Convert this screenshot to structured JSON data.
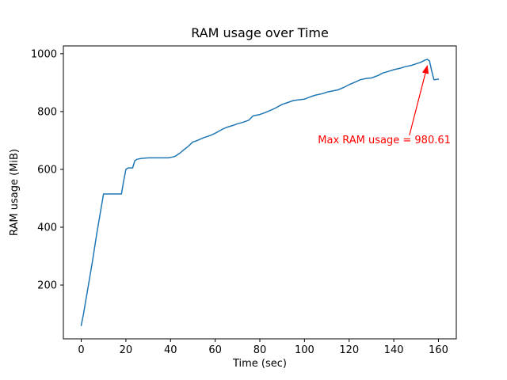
{
  "chart_data": {
    "type": "line",
    "title": "RAM usage over Time",
    "xlabel": "Time (sec)",
    "ylabel": "RAM usage (MiB)",
    "xlim": [
      -8,
      168
    ],
    "ylim": [
      14,
      1027
    ],
    "xticks": [
      0,
      20,
      40,
      60,
      80,
      100,
      120,
      140,
      160
    ],
    "yticks": [
      200,
      400,
      600,
      800,
      1000
    ],
    "grid": false,
    "legend": "none",
    "series": [
      {
        "name": "RAM usage",
        "color": "#1f77b4",
        "x": [
          0,
          1,
          3,
          5,
          7,
          9,
          10,
          12,
          14,
          16,
          18,
          19,
          20,
          21,
          23,
          24,
          25,
          27,
          30,
          33,
          36,
          39,
          41,
          42,
          44,
          46,
          48,
          50,
          52,
          55,
          58,
          60,
          63,
          65,
          68,
          70,
          72,
          75,
          77,
          80,
          82,
          85,
          87,
          90,
          92,
          95,
          100,
          103,
          105,
          108,
          110,
          113,
          115,
          118,
          120,
          123,
          125,
          128,
          130,
          133,
          135,
          138,
          140,
          143,
          145,
          148,
          150,
          152,
          154,
          155,
          156,
          157,
          158,
          160
        ],
        "y": [
          60,
          100,
          190,
          280,
          380,
          470,
          515,
          515,
          515,
          515,
          515,
          560,
          600,
          605,
          605,
          630,
          635,
          638,
          640,
          640,
          640,
          640,
          643,
          645,
          655,
          668,
          680,
          695,
          700,
          710,
          718,
          725,
          738,
          745,
          752,
          758,
          762,
          770,
          785,
          790,
          795,
          805,
          812,
          825,
          830,
          838,
          843,
          852,
          857,
          862,
          867,
          872,
          875,
          885,
          893,
          903,
          910,
          915,
          916,
          925,
          933,
          940,
          945,
          950,
          955,
          960,
          965,
          970,
          978,
          980.61,
          975,
          940,
          910,
          912
        ]
      }
    ],
    "annotations": [
      {
        "text": "Max RAM usage = 980.61",
        "color": "#ff0000",
        "point": [
          155,
          980.61
        ],
        "text_pos": [
          106,
          690
        ],
        "arrow_from": [
          147,
          718
        ],
        "arrow_to": [
          155,
          958
        ]
      }
    ]
  }
}
